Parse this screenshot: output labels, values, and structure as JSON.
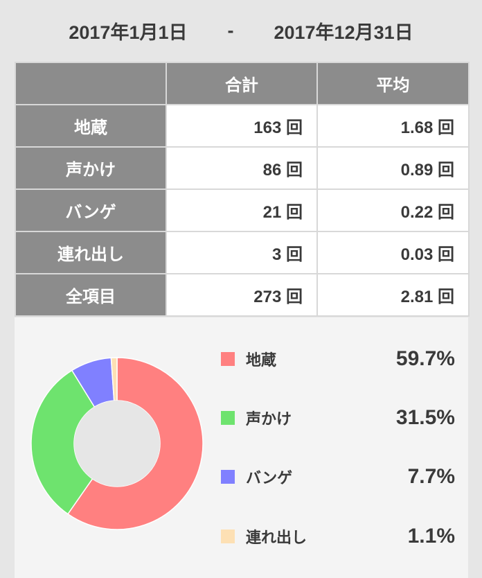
{
  "date_range": {
    "start": "2017年1月1日",
    "separator": "-",
    "end": "2017年12月31日"
  },
  "table": {
    "headers": [
      "",
      "合計",
      "平均"
    ],
    "rows": [
      {
        "label": "地蔵",
        "total": "163 回",
        "average": "1.68 回"
      },
      {
        "label": "声かけ",
        "total": "86 回",
        "average": "0.89 回"
      },
      {
        "label": "バンゲ",
        "total": "21 回",
        "average": "0.22 回"
      },
      {
        "label": "連れ出し",
        "total": "3 回",
        "average": "0.03 回"
      },
      {
        "label": "全項目",
        "total": "273 回",
        "average": "2.81 回"
      }
    ]
  },
  "chart_data": {
    "type": "pie",
    "style": "donut",
    "categories": [
      "地蔵",
      "声かけ",
      "バンゲ",
      "連れ出し"
    ],
    "values": [
      59.7,
      31.5,
      7.7,
      1.1
    ],
    "labels": [
      "59.7%",
      "31.5%",
      "7.7%",
      "1.1%"
    ],
    "colors": [
      "#ff8080",
      "#6ee36e",
      "#8080ff",
      "#fde0b4"
    ],
    "legend_position": "right",
    "title": ""
  }
}
